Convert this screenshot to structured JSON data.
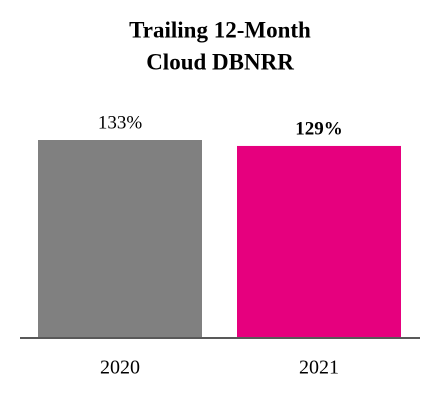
{
  "chart_data": {
    "type": "bar",
    "title": [
      "Trailing 12-Month",
      "Cloud DBNRR"
    ],
    "categories": [
      "2020",
      "2021"
    ],
    "values": [
      133,
      129
    ],
    "value_labels": [
      "133%",
      "129%"
    ],
    "value_label_bold": [
      false,
      true
    ],
    "colors": [
      "#808080",
      "#e6007e"
    ]
  }
}
